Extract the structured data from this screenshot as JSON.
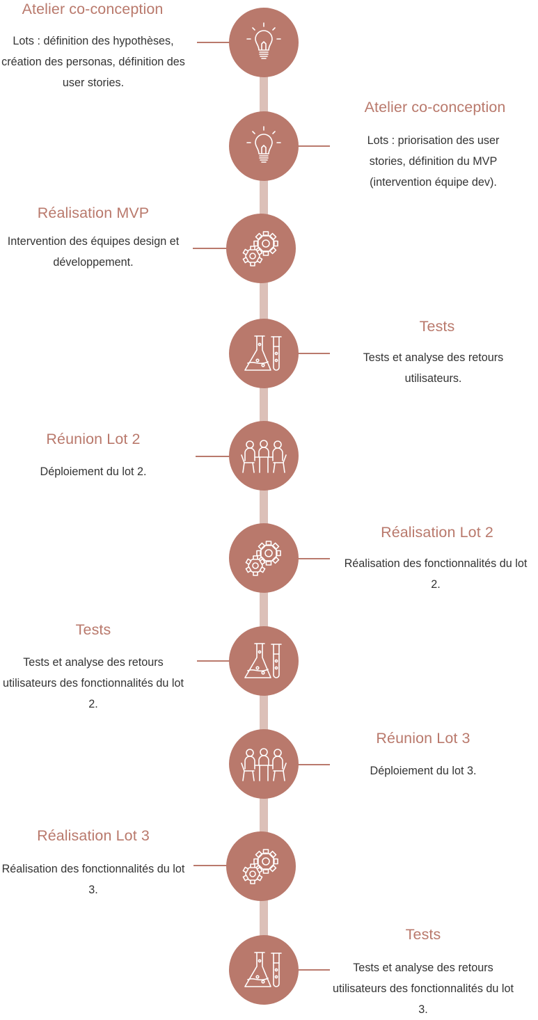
{
  "steps": [
    {
      "icon": "lightbulb-icon",
      "title": "Atelier co-conception",
      "desc": "Lots : définition des hypothèses, création des personas, définition des user stories."
    },
    {
      "icon": "lightbulb-icon",
      "title": "Atelier co-conception",
      "desc": "Lots : priorisation des user stories, définition du MVP (intervention équipe dev)."
    },
    {
      "icon": "gears-icon",
      "title": "Réalisation MVP",
      "desc": "Intervention des équipes design et développement."
    },
    {
      "icon": "lab-flask-icon",
      "title": "Tests",
      "desc": "Tests et analyse des retours utilisateurs."
    },
    {
      "icon": "meeting-icon",
      "title": "Réunion Lot 2",
      "desc": "Déploiement du lot 2."
    },
    {
      "icon": "gears-icon",
      "title": "Réalisation Lot 2",
      "desc": "Réalisation des fonctionnalités du lot 2."
    },
    {
      "icon": "lab-flask-icon",
      "title": "Tests",
      "desc": "Tests et analyse des retours utilisateurs des fonctionnalités du lot 2."
    },
    {
      "icon": "meeting-icon",
      "title": "Réunion Lot 3",
      "desc": "Déploiement du lot 3."
    },
    {
      "icon": "gears-icon",
      "title": "Réalisation Lot 3",
      "desc": "Réalisation des fonctionnalités du lot 3."
    },
    {
      "icon": "lab-flask-icon",
      "title": "Tests",
      "desc": "Tests et analyse des retours utilisateurs des fonctionnalités du lot 3."
    }
  ],
  "colors": {
    "accent": "#b9796c",
    "line": "#dcc0b8",
    "text": "#333333"
  }
}
